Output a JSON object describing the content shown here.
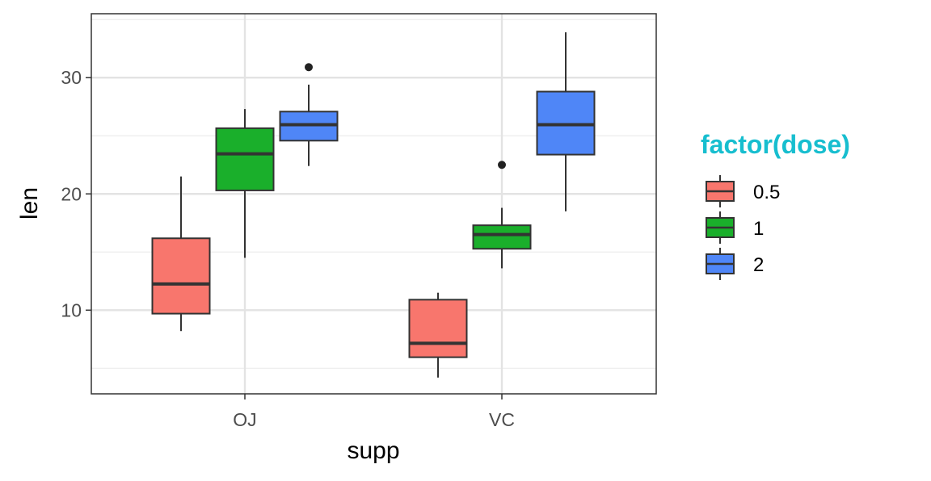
{
  "chart_data": {
    "type": "boxplot",
    "xlabel": "supp",
    "ylabel": "len",
    "categories": [
      "OJ",
      "VC"
    ],
    "ylim": [
      2.8,
      35.5
    ],
    "yticks": [
      10,
      20,
      30
    ],
    "grid": true,
    "legend": {
      "title": "factor(dose)",
      "title_color": "#17BECF",
      "placement": "right",
      "entries": [
        "0.5",
        "1",
        "2"
      ]
    },
    "series": [
      {
        "name": "0.5",
        "color": "#F8766D",
        "boxes": [
          {
            "category": "OJ",
            "min": 8.2,
            "q1": 9.7,
            "median": 12.25,
            "q3": 16.18,
            "max": 21.5,
            "outliers": []
          },
          {
            "category": "VC",
            "min": 4.2,
            "q1": 5.95,
            "median": 7.15,
            "q3": 10.9,
            "max": 11.5,
            "outliers": []
          }
        ]
      },
      {
        "name": "1",
        "color": "#1AAF2B",
        "boxes": [
          {
            "category": "OJ",
            "min": 14.5,
            "q1": 20.3,
            "median": 23.45,
            "q3": 25.65,
            "max": 27.3,
            "outliers": []
          },
          {
            "category": "VC",
            "min": 13.6,
            "q1": 15.28,
            "median": 16.5,
            "q3": 17.3,
            "max": 18.8,
            "outliers": [
              22.5
            ]
          }
        ]
      },
      {
        "name": "2",
        "color": "#4F86F7",
        "boxes": [
          {
            "category": "OJ",
            "min": 22.4,
            "q1": 24.58,
            "median": 25.95,
            "q3": 27.08,
            "max": 29.4,
            "outliers": [
              30.9
            ]
          },
          {
            "category": "VC",
            "min": 18.5,
            "q1": 23.38,
            "median": 25.95,
            "q3": 28.8,
            "max": 33.9,
            "outliers": []
          }
        ]
      }
    ]
  }
}
